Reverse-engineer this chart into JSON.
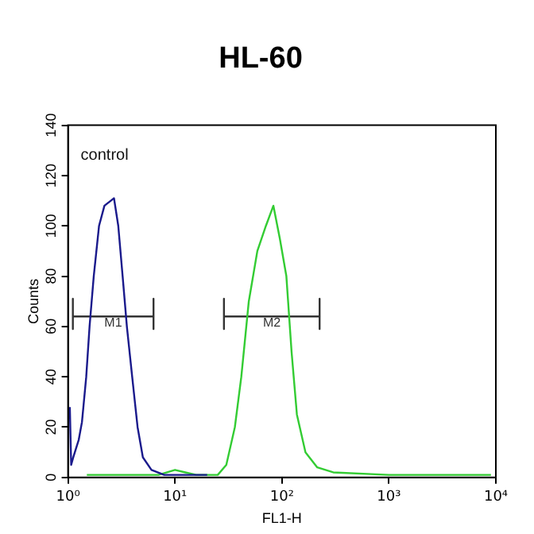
{
  "chart_data": {
    "type": "line",
    "title": "HL-60",
    "xlabel": "FL1-H",
    "ylabel": "Counts",
    "log": "x",
    "grid": false,
    "legend": false,
    "marker": "none",
    "line_style": "solid",
    "xlim": [
      1,
      10000
    ],
    "xticks": [
      {
        "value": 1,
        "label": "10⁰"
      },
      {
        "value": 10,
        "label": "10¹"
      },
      {
        "value": 100,
        "label": "10²"
      },
      {
        "value": 1000,
        "label": "10³"
      },
      {
        "value": 10000,
        "label": "10⁴"
      }
    ],
    "ylim": [
      0,
      140
    ],
    "yticks": [
      0,
      20,
      40,
      60,
      80,
      100,
      120,
      140
    ],
    "series": [
      {
        "color": "#1a1a8c",
        "x": [
          1.04,
          1.07,
          1.12,
          1.26,
          1.35,
          1.48,
          1.59,
          1.74,
          1.95,
          2.19,
          2.51,
          2.69,
          2.95,
          3.24,
          3.55,
          3.98,
          4.47,
          5.01,
          6.03,
          7.94,
          10,
          20
        ],
        "values": [
          28,
          5,
          8,
          15,
          22,
          40,
          60,
          80,
          100,
          108,
          110,
          111,
          100,
          80,
          60,
          40,
          20,
          8,
          3,
          1,
          1,
          1
        ]
      },
      {
        "color": "#33cc33",
        "x": [
          1.5,
          3.16,
          7,
          10,
          12.5,
          15.8,
          25.1,
          30.2,
          36.3,
          41.7,
          49,
          58.9,
          70.8,
          83.2,
          95.5,
          110,
          123,
          138,
          166,
          214,
          302,
          1000,
          9000
        ],
        "values": [
          1,
          1,
          1,
          3,
          2,
          1,
          1,
          5,
          20,
          40,
          70,
          90,
          100,
          108,
          95,
          80,
          50,
          25,
          10,
          4,
          2,
          1,
          1
        ]
      },
      {
        "name": "M1",
        "color": "#333333",
        "x": [
          1.11,
          1.11,
          1.11,
          2.64,
          6.3,
          6.3,
          6.3
        ],
        "values": [
          71,
          59,
          64,
          64,
          64,
          71,
          59
        ]
      },
      {
        "name": "M2",
        "color": "#333333",
        "x": [
          28.7,
          28.7,
          28.7,
          80.4,
          225,
          225,
          225
        ],
        "values": [
          71,
          59,
          64,
          64,
          64,
          71,
          59
        ]
      }
    ],
    "annotations": [
      "control"
    ]
  }
}
